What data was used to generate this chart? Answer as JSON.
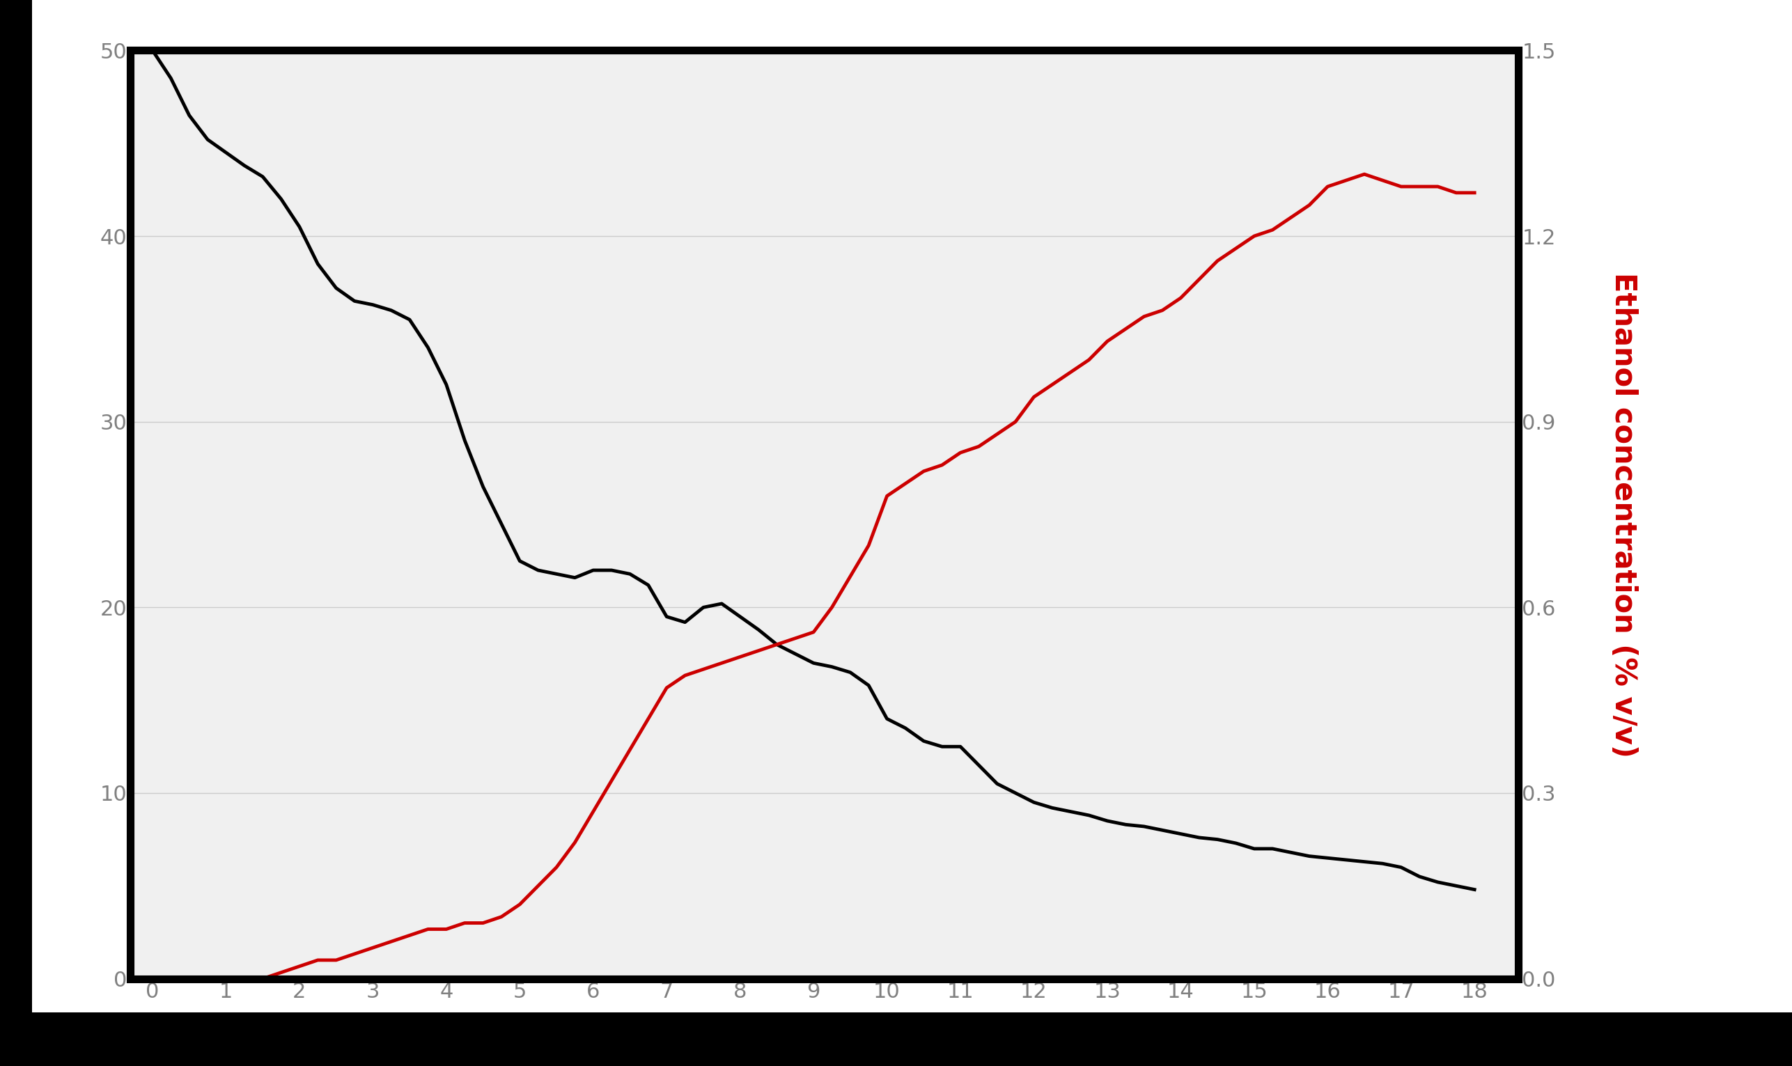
{
  "x": [
    0,
    0.25,
    0.5,
    0.75,
    1,
    1.25,
    1.5,
    1.75,
    2,
    2.25,
    2.5,
    2.75,
    3,
    3.25,
    3.5,
    3.75,
    4,
    4.25,
    4.5,
    4.75,
    5,
    5.25,
    5.5,
    5.75,
    6,
    6.25,
    6.5,
    6.75,
    7,
    7.25,
    7.5,
    7.75,
    8,
    8.25,
    8.5,
    8.75,
    9,
    9.25,
    9.5,
    9.75,
    10,
    10.25,
    10.5,
    10.75,
    11,
    11.25,
    11.5,
    11.75,
    12,
    12.25,
    12.5,
    12.75,
    13,
    13.25,
    13.5,
    13.75,
    14,
    14.25,
    14.5,
    14.75,
    15,
    15.25,
    15.5,
    15.75,
    16,
    16.25,
    16.5,
    16.75,
    17,
    17.25,
    17.5,
    17.75,
    18
  ],
  "black_y": [
    50,
    48.5,
    46.5,
    45.2,
    44.5,
    43.8,
    43.2,
    42.0,
    40.5,
    38.5,
    37.2,
    36.5,
    36.3,
    36.0,
    35.5,
    34.0,
    32.0,
    29.0,
    26.5,
    24.5,
    22.5,
    22.0,
    21.8,
    21.6,
    22.0,
    22.0,
    21.8,
    21.2,
    19.5,
    19.2,
    20.0,
    20.2,
    19.5,
    18.8,
    18.0,
    17.5,
    17.0,
    16.8,
    16.5,
    15.8,
    14.0,
    13.5,
    12.8,
    12.5,
    12.5,
    11.5,
    10.5,
    10.0,
    9.5,
    9.2,
    9.0,
    8.8,
    8.5,
    8.3,
    8.2,
    8.0,
    7.8,
    7.6,
    7.5,
    7.3,
    7.0,
    7.0,
    6.8,
    6.6,
    6.5,
    6.4,
    6.3,
    6.2,
    6.0,
    5.5,
    5.2,
    5.0,
    4.8
  ],
  "red_y": [
    0.0,
    0.0,
    0.0,
    0.0,
    0.0,
    0.0,
    0.0,
    0.01,
    0.02,
    0.03,
    0.03,
    0.04,
    0.05,
    0.06,
    0.07,
    0.08,
    0.08,
    0.09,
    0.09,
    0.1,
    0.12,
    0.15,
    0.18,
    0.22,
    0.27,
    0.32,
    0.37,
    0.42,
    0.47,
    0.49,
    0.5,
    0.51,
    0.52,
    0.53,
    0.54,
    0.55,
    0.56,
    0.6,
    0.65,
    0.7,
    0.78,
    0.8,
    0.82,
    0.83,
    0.85,
    0.86,
    0.88,
    0.9,
    0.94,
    0.96,
    0.98,
    1.0,
    1.03,
    1.05,
    1.07,
    1.08,
    1.1,
    1.13,
    1.16,
    1.18,
    1.2,
    1.21,
    1.23,
    1.25,
    1.28,
    1.29,
    1.3,
    1.29,
    1.28,
    1.28,
    1.28,
    1.27,
    1.27
  ],
  "black_color": "#000000",
  "red_color": "#cc0000",
  "left_ylim": [
    0,
    50
  ],
  "right_ylim": [
    0.0,
    1.5
  ],
  "left_yticks": [
    0,
    10,
    20,
    30,
    40,
    50
  ],
  "right_yticks": [
    0.0,
    0.3,
    0.6,
    0.9,
    1.2,
    1.5
  ],
  "xticks": [
    0,
    1,
    2,
    3,
    4,
    5,
    6,
    7,
    8,
    9,
    10,
    11,
    12,
    13,
    14,
    15,
    16,
    17,
    18
  ],
  "right_ylabel": "Ethanol concentration (% v/v)",
  "plot_bg_color": "#f0f0f0",
  "grid_color": "#cccccc",
  "linewidth": 3.5,
  "fig_bg_color": "#ffffff",
  "border_color": "#000000",
  "tick_label_color": "#808080",
  "tick_label_size": 22,
  "ylabel_fontsize": 30,
  "ylabel_color": "#cc0000"
}
